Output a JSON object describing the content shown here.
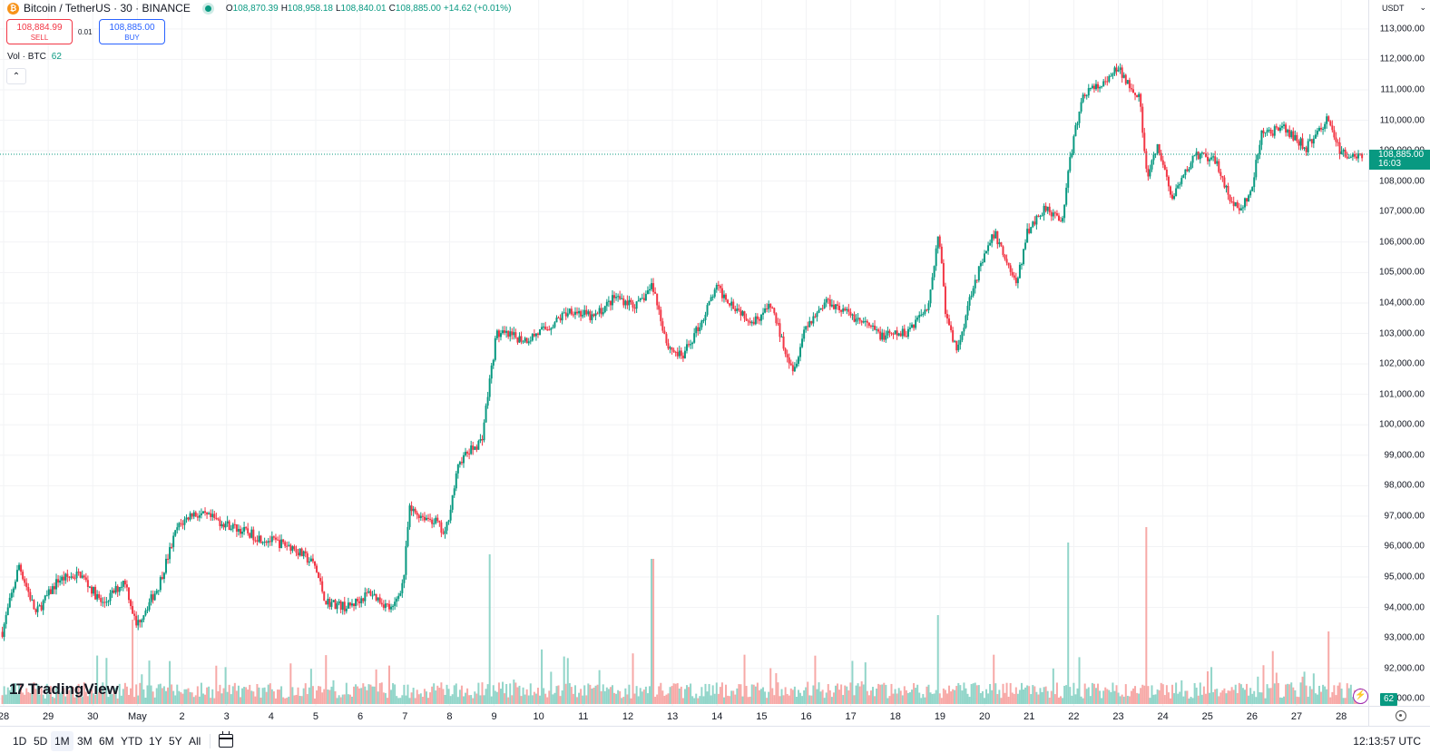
{
  "legend": {
    "symbol": "Bitcoin / TetherUS · 30 · BINANCE",
    "icon": "bitcoin-icon",
    "open_key": "O",
    "open": "108,870.39",
    "high_key": "H",
    "high": "108,958.18",
    "low_key": "L",
    "low": "108,840.01",
    "close_key": "C",
    "close": "108,885.00",
    "change": "+14.62 (+0.01%)"
  },
  "trade": {
    "sell_price": "108,884.99",
    "sell_label": "SELL",
    "spread": "0.01",
    "buy_price": "108,885.00",
    "buy_label": "BUY"
  },
  "volume_legend": {
    "label": "Vol · BTC",
    "value": "62"
  },
  "collapse_icon": "chevron-up-icon",
  "logo": {
    "mark": "17",
    "text": "TradingView"
  },
  "price_axis": {
    "currency": "USDT",
    "ticks": [
      "113,000.00",
      "112,000.00",
      "111,000.00",
      "110,000.00",
      "109,000.00",
      "108,000.00",
      "107,000.00",
      "106,000.00",
      "105,000.00",
      "104,000.00",
      "103,000.00",
      "102,000.00",
      "101,000.00",
      "100,000.00",
      "99,000.00",
      "98,000.00",
      "97,000.00",
      "96,000.00",
      "95,000.00",
      "94,000.00",
      "93,000.00",
      "92,000.00",
      "91,000.00"
    ],
    "last_price": "108,885.00",
    "countdown": "16:03",
    "volume_value": "62"
  },
  "time_axis": {
    "ticks": [
      "28",
      "29",
      "30",
      "May",
      "2",
      "3",
      "4",
      "5",
      "6",
      "7",
      "8",
      "9",
      "10",
      "11",
      "12",
      "13",
      "14",
      "15",
      "16",
      "17",
      "18",
      "19",
      "20",
      "21",
      "22",
      "23",
      "24",
      "25",
      "26",
      "27",
      "28"
    ]
  },
  "bottom_bar": {
    "ranges": [
      "1D",
      "5D",
      "1M",
      "3M",
      "6M",
      "YTD",
      "1Y",
      "5Y",
      "All"
    ],
    "active_range": "1M",
    "clock": "12:13:57 UTC"
  },
  "colors": {
    "up": "#089981",
    "down": "#f23645",
    "up_volume": "#91d5c9",
    "down_volume": "#f7a9a7",
    "grid": "#f2f3f5"
  },
  "chart_data": {
    "type": "candlestick",
    "interval": "30m",
    "series": [
      {
        "name": "BTCUSDT",
        "close_path": [
          {
            "x": "Apr 28 00:00",
            "y": 93200
          },
          {
            "x": "Apr 28 09:00",
            "y": 95400
          },
          {
            "x": "Apr 28 18:00",
            "y": 93800
          },
          {
            "x": "Apr 29 06:00",
            "y": 94900
          },
          {
            "x": "Apr 29 18:00",
            "y": 95100
          },
          {
            "x": "Apr 30 06:00",
            "y": 94100
          },
          {
            "x": "Apr 30 18:00",
            "y": 94900
          },
          {
            "x": "May 1 00:00",
            "y": 93400
          },
          {
            "x": "May 1 12:00",
            "y": 94700
          },
          {
            "x": "May 1 22:00",
            "y": 96600
          },
          {
            "x": "May 2 06:00",
            "y": 97100
          },
          {
            "x": "May 2 18:00",
            "y": 96900
          },
          {
            "x": "May 3 06:00",
            "y": 96600
          },
          {
            "x": "May 3 18:00",
            "y": 96300
          },
          {
            "x": "May 4 12:00",
            "y": 96000
          },
          {
            "x": "May 5 00:00",
            "y": 95400
          },
          {
            "x": "May 5 06:00",
            "y": 94200
          },
          {
            "x": "May 5 18:00",
            "y": 94000
          },
          {
            "x": "May 6 06:00",
            "y": 94500
          },
          {
            "x": "May 6 18:00",
            "y": 93900
          },
          {
            "x": "May 7 00:00",
            "y": 94900
          },
          {
            "x": "May 7 03:00",
            "y": 97200
          },
          {
            "x": "May 7 18:00",
            "y": 96800
          },
          {
            "x": "May 7 22:00",
            "y": 96300
          },
          {
            "x": "May 8 06:00",
            "y": 98800
          },
          {
            "x": "May 8 18:00",
            "y": 99500
          },
          {
            "x": "May 8 22:00",
            "y": 101300
          },
          {
            "x": "May 9 02:00",
            "y": 103000
          },
          {
            "x": "May 9 18:00",
            "y": 102800
          },
          {
            "x": "May 10 06:00",
            "y": 103200
          },
          {
            "x": "May 10 18:00",
            "y": 103800
          },
          {
            "x": "May 11 06:00",
            "y": 103500
          },
          {
            "x": "May 11 18:00",
            "y": 104200
          },
          {
            "x": "May 12 06:00",
            "y": 103900
          },
          {
            "x": "May 12 14:00",
            "y": 104600
          },
          {
            "x": "May 12 22:00",
            "y": 102600
          },
          {
            "x": "May 13 06:00",
            "y": 102200
          },
          {
            "x": "May 13 18:00",
            "y": 103600
          },
          {
            "x": "May 14 00:00",
            "y": 104500
          },
          {
            "x": "May 14 12:00",
            "y": 103800
          },
          {
            "x": "May 14 20:00",
            "y": 103400
          },
          {
            "x": "May 15 06:00",
            "y": 103900
          },
          {
            "x": "May 15 12:00",
            "y": 102700
          },
          {
            "x": "May 15 18:00",
            "y": 101800
          },
          {
            "x": "May 16 00:00",
            "y": 103200
          },
          {
            "x": "May 16 12:00",
            "y": 104100
          },
          {
            "x": "May 16 22:00",
            "y": 103700
          },
          {
            "x": "May 17 06:00",
            "y": 103400
          },
          {
            "x": "May 17 18:00",
            "y": 102900
          },
          {
            "x": "May 18 06:00",
            "y": 103000
          },
          {
            "x": "May 18 18:00",
            "y": 103900
          },
          {
            "x": "May 18 22:00",
            "y": 105400
          },
          {
            "x": "May 19 00:00",
            "y": 106400
          },
          {
            "x": "May 19 04:00",
            "y": 103500
          },
          {
            "x": "May 19 10:00",
            "y": 102400
          },
          {
            "x": "May 19 18:00",
            "y": 104500
          },
          {
            "x": "May 20 06:00",
            "y": 106300
          },
          {
            "x": "May 20 18:00",
            "y": 104600
          },
          {
            "x": "May 21 00:00",
            "y": 106400
          },
          {
            "x": "May 21 10:00",
            "y": 107200
          },
          {
            "x": "May 21 18:00",
            "y": 106600
          },
          {
            "x": "May 22 00:00",
            "y": 109200
          },
          {
            "x": "May 22 06:00",
            "y": 110900
          },
          {
            "x": "May 22 18:00",
            "y": 111200
          },
          {
            "x": "May 23 00:00",
            "y": 111700
          },
          {
            "x": "May 23 12:00",
            "y": 110800
          },
          {
            "x": "May 23 16:00",
            "y": 108100
          },
          {
            "x": "May 23 22:00",
            "y": 109100
          },
          {
            "x": "May 24 06:00",
            "y": 107400
          },
          {
            "x": "May 24 18:00",
            "y": 108900
          },
          {
            "x": "May 25 06:00",
            "y": 108600
          },
          {
            "x": "May 25 12:00",
            "y": 107500
          },
          {
            "x": "May 25 18:00",
            "y": 107000
          },
          {
            "x": "May 26 00:00",
            "y": 107600
          },
          {
            "x": "May 26 06:00",
            "y": 109600
          },
          {
            "x": "May 26 18:00",
            "y": 109700
          },
          {
            "x": "May 27 06:00",
            "y": 109100
          },
          {
            "x": "May 27 18:00",
            "y": 110100
          },
          {
            "x": "May 28 00:00",
            "y": 108900
          },
          {
            "x": "May 28 12:00",
            "y": 108885
          }
        ]
      }
    ],
    "last_price": 108885.0,
    "ylim": [
      90800,
      113800
    ],
    "volume_spikes": [
      {
        "x": "Apr 30 22:00",
        "v": 93
      },
      {
        "x": "May 8 22:00",
        "v": 165
      },
      {
        "x": "May 12 14:00",
        "v": 160
      },
      {
        "x": "May 19 00:00",
        "v": 98
      },
      {
        "x": "May 21 22:00",
        "v": 178
      },
      {
        "x": "May 23 16:00",
        "v": 195
      },
      {
        "x": "May 27 18:00",
        "v": 80
      }
    ],
    "last_volume": 62
  }
}
